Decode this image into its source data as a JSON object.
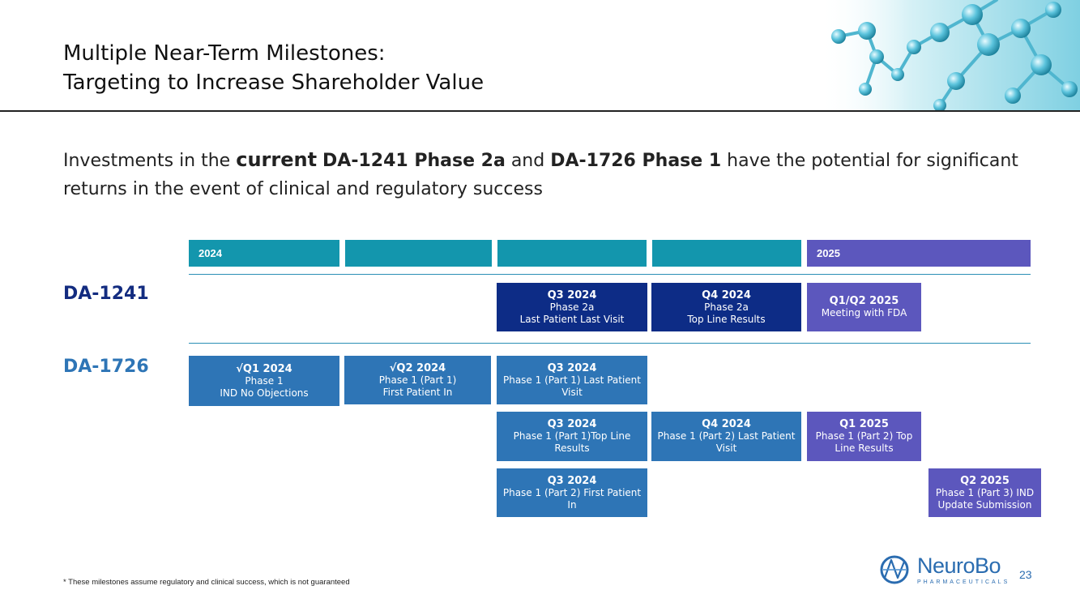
{
  "title": {
    "line1": "Multiple Near-Term Milestones:",
    "line2": "Targeting to Increase Shareholder Value"
  },
  "subtitle": {
    "p1": "Investments in the ",
    "current": "current",
    "p2": " ",
    "da1241_phase": "DA-1241 Phase 2a",
    "p3": " and ",
    "da1726_phase": "DA-1726 Phase 1",
    "p4": " have the potential for significant returns in the event of clinical and regulatory success"
  },
  "timeline": {
    "periods": [
      {
        "label": "2024"
      },
      {
        "label": ""
      },
      {
        "label": ""
      },
      {
        "label": ""
      },
      {
        "label": "2025"
      }
    ],
    "drugs": {
      "da1241": "DA-1241",
      "da1726": "DA-1726"
    },
    "milestones": [
      {
        "quarter": "Q3 2024",
        "desc": "Phase 2a\nLast Patient Last Visit"
      },
      {
        "quarter": "Q4 2024",
        "desc": "Phase 2a\nTop Line Results"
      },
      {
        "quarter": "Q1/Q2 2025",
        "desc": "Meeting with FDA"
      },
      {
        "quarter": "√Q1 2024",
        "desc": "Phase 1\nIND No Objections"
      },
      {
        "quarter": "√Q2 2024",
        "desc": "Phase 1 (Part 1)\nFirst Patient In"
      },
      {
        "quarter": "Q3 2024",
        "desc": "Phase 1 (Part 1) Last Patient Visit"
      },
      {
        "quarter": "Q3 2024",
        "desc": "Phase 1 (Part 1)Top Line Results"
      },
      {
        "quarter": "Q4 2024",
        "desc": "Phase 1 (Part 2) Last Patient Visit"
      },
      {
        "quarter": "Q1 2025",
        "desc": "Phase 1 (Part 2) Top Line Results"
      },
      {
        "quarter": "Q3 2024",
        "desc": "Phase 1 (Part 2) First Patient In"
      },
      {
        "quarter": "Q2 2025",
        "desc": "Phase 1 (Part 3) IND Update Submission"
      }
    ]
  },
  "footnote": "* These milestones assume regulatory and clinical success, which is not guaranteed",
  "logo": {
    "name": "NeuroBo",
    "tagline": "PHARMACEUTICALS"
  },
  "page_number": "23",
  "colors": {
    "teal": "#1396ad",
    "purple": "#5c57bd",
    "navy": "#0d2c86",
    "blue": "#2e75b6"
  }
}
